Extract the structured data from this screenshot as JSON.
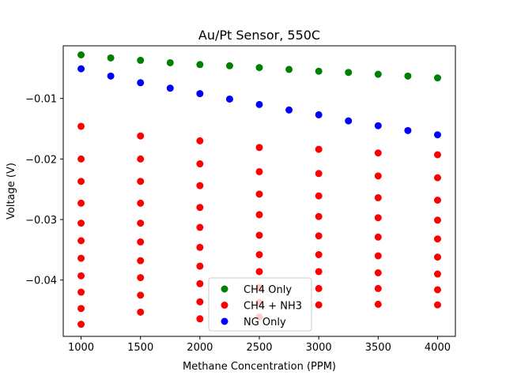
{
  "chart_data": {
    "type": "scatter",
    "title": "Au/Pt Sensor, 550C",
    "xlabel": "Methane Concentration (PPM)",
    "ylabel": "Voltage (V)",
    "xlim": [
      850,
      4150
    ],
    "ylim": [
      -0.0493,
      -0.0013
    ],
    "xticks": [
      1000,
      1500,
      2000,
      2500,
      3000,
      3500,
      4000
    ],
    "xtick_labels": [
      "1000",
      "1500",
      "2000",
      "2500",
      "3000",
      "3500",
      "4000"
    ],
    "yticks": [
      -0.01,
      -0.02,
      -0.03,
      -0.04
    ],
    "ytick_labels": [
      "−0.01",
      "−0.02",
      "−0.03",
      "−0.04"
    ],
    "grid": false,
    "legend_position": "bottom-center",
    "series": [
      {
        "name": "CH4 Only",
        "color": "#008000",
        "points": [
          [
            1000,
            -0.0028
          ],
          [
            1250,
            -0.0033
          ],
          [
            1500,
            -0.0037
          ],
          [
            1750,
            -0.0041
          ],
          [
            2000,
            -0.0044
          ],
          [
            2250,
            -0.0046
          ],
          [
            2500,
            -0.0049
          ],
          [
            2750,
            -0.0052
          ],
          [
            3000,
            -0.0055
          ],
          [
            3250,
            -0.0057
          ],
          [
            3500,
            -0.006
          ],
          [
            3750,
            -0.0063
          ],
          [
            4000,
            -0.0066
          ]
        ]
      },
      {
        "name": "CH4 + NH3",
        "color": "#ff0000",
        "points": [
          [
            1000,
            -0.0146
          ],
          [
            1000,
            -0.02
          ],
          [
            1000,
            -0.0237
          ],
          [
            1000,
            -0.0273
          ],
          [
            1000,
            -0.0306
          ],
          [
            1000,
            -0.0335
          ],
          [
            1000,
            -0.0364
          ],
          [
            1000,
            -0.0393
          ],
          [
            1000,
            -0.042
          ],
          [
            1000,
            -0.0447
          ],
          [
            1000,
            -0.0473
          ],
          [
            1500,
            -0.0162
          ],
          [
            1500,
            -0.02
          ],
          [
            1500,
            -0.0237
          ],
          [
            1500,
            -0.0273
          ],
          [
            1500,
            -0.0306
          ],
          [
            1500,
            -0.0337
          ],
          [
            1500,
            -0.0368
          ],
          [
            1500,
            -0.0396
          ],
          [
            1500,
            -0.0425
          ],
          [
            1500,
            -0.0453
          ],
          [
            2000,
            -0.017
          ],
          [
            2000,
            -0.0208
          ],
          [
            2000,
            -0.0244
          ],
          [
            2000,
            -0.028
          ],
          [
            2000,
            -0.0313
          ],
          [
            2000,
            -0.0346
          ],
          [
            2000,
            -0.0377
          ],
          [
            2000,
            -0.0406
          ],
          [
            2000,
            -0.0436
          ],
          [
            2000,
            -0.0464
          ],
          [
            2500,
            -0.0181
          ],
          [
            2500,
            -0.0221
          ],
          [
            2500,
            -0.0258
          ],
          [
            2500,
            -0.0292
          ],
          [
            2500,
            -0.0326
          ],
          [
            2500,
            -0.0358
          ],
          [
            2500,
            -0.0386
          ],
          [
            2500,
            -0.0412
          ],
          [
            2500,
            -0.0437
          ],
          [
            2500,
            -0.0461
          ],
          [
            3000,
            -0.0184
          ],
          [
            3000,
            -0.0224
          ],
          [
            3000,
            -0.0261
          ],
          [
            3000,
            -0.0295
          ],
          [
            3000,
            -0.0327
          ],
          [
            3000,
            -0.0358
          ],
          [
            3000,
            -0.0386
          ],
          [
            3000,
            -0.0414
          ],
          [
            3000,
            -0.0441
          ],
          [
            3500,
            -0.019
          ],
          [
            3500,
            -0.0228
          ],
          [
            3500,
            -0.0264
          ],
          [
            3500,
            -0.0297
          ],
          [
            3500,
            -0.0329
          ],
          [
            3500,
            -0.036
          ],
          [
            3500,
            -0.0388
          ],
          [
            3500,
            -0.0414
          ],
          [
            3500,
            -0.044
          ],
          [
            4000,
            -0.0193
          ],
          [
            4000,
            -0.0231
          ],
          [
            4000,
            -0.0268
          ],
          [
            4000,
            -0.0301
          ],
          [
            4000,
            -0.0332
          ],
          [
            4000,
            -0.0362
          ],
          [
            4000,
            -0.039
          ],
          [
            4000,
            -0.0416
          ],
          [
            4000,
            -0.0441
          ]
        ]
      },
      {
        "name": "NG Only",
        "color": "#0000ff",
        "points": [
          [
            1000,
            -0.0051
          ],
          [
            1250,
            -0.0063
          ],
          [
            1500,
            -0.0074
          ],
          [
            1750,
            -0.0083
          ],
          [
            2000,
            -0.0092
          ],
          [
            2250,
            -0.0101
          ],
          [
            2500,
            -0.011
          ],
          [
            2750,
            -0.0119
          ],
          [
            3000,
            -0.0127
          ],
          [
            3250,
            -0.0137
          ],
          [
            3500,
            -0.0145
          ],
          [
            3750,
            -0.0153
          ],
          [
            4000,
            -0.016
          ]
        ]
      }
    ]
  }
}
